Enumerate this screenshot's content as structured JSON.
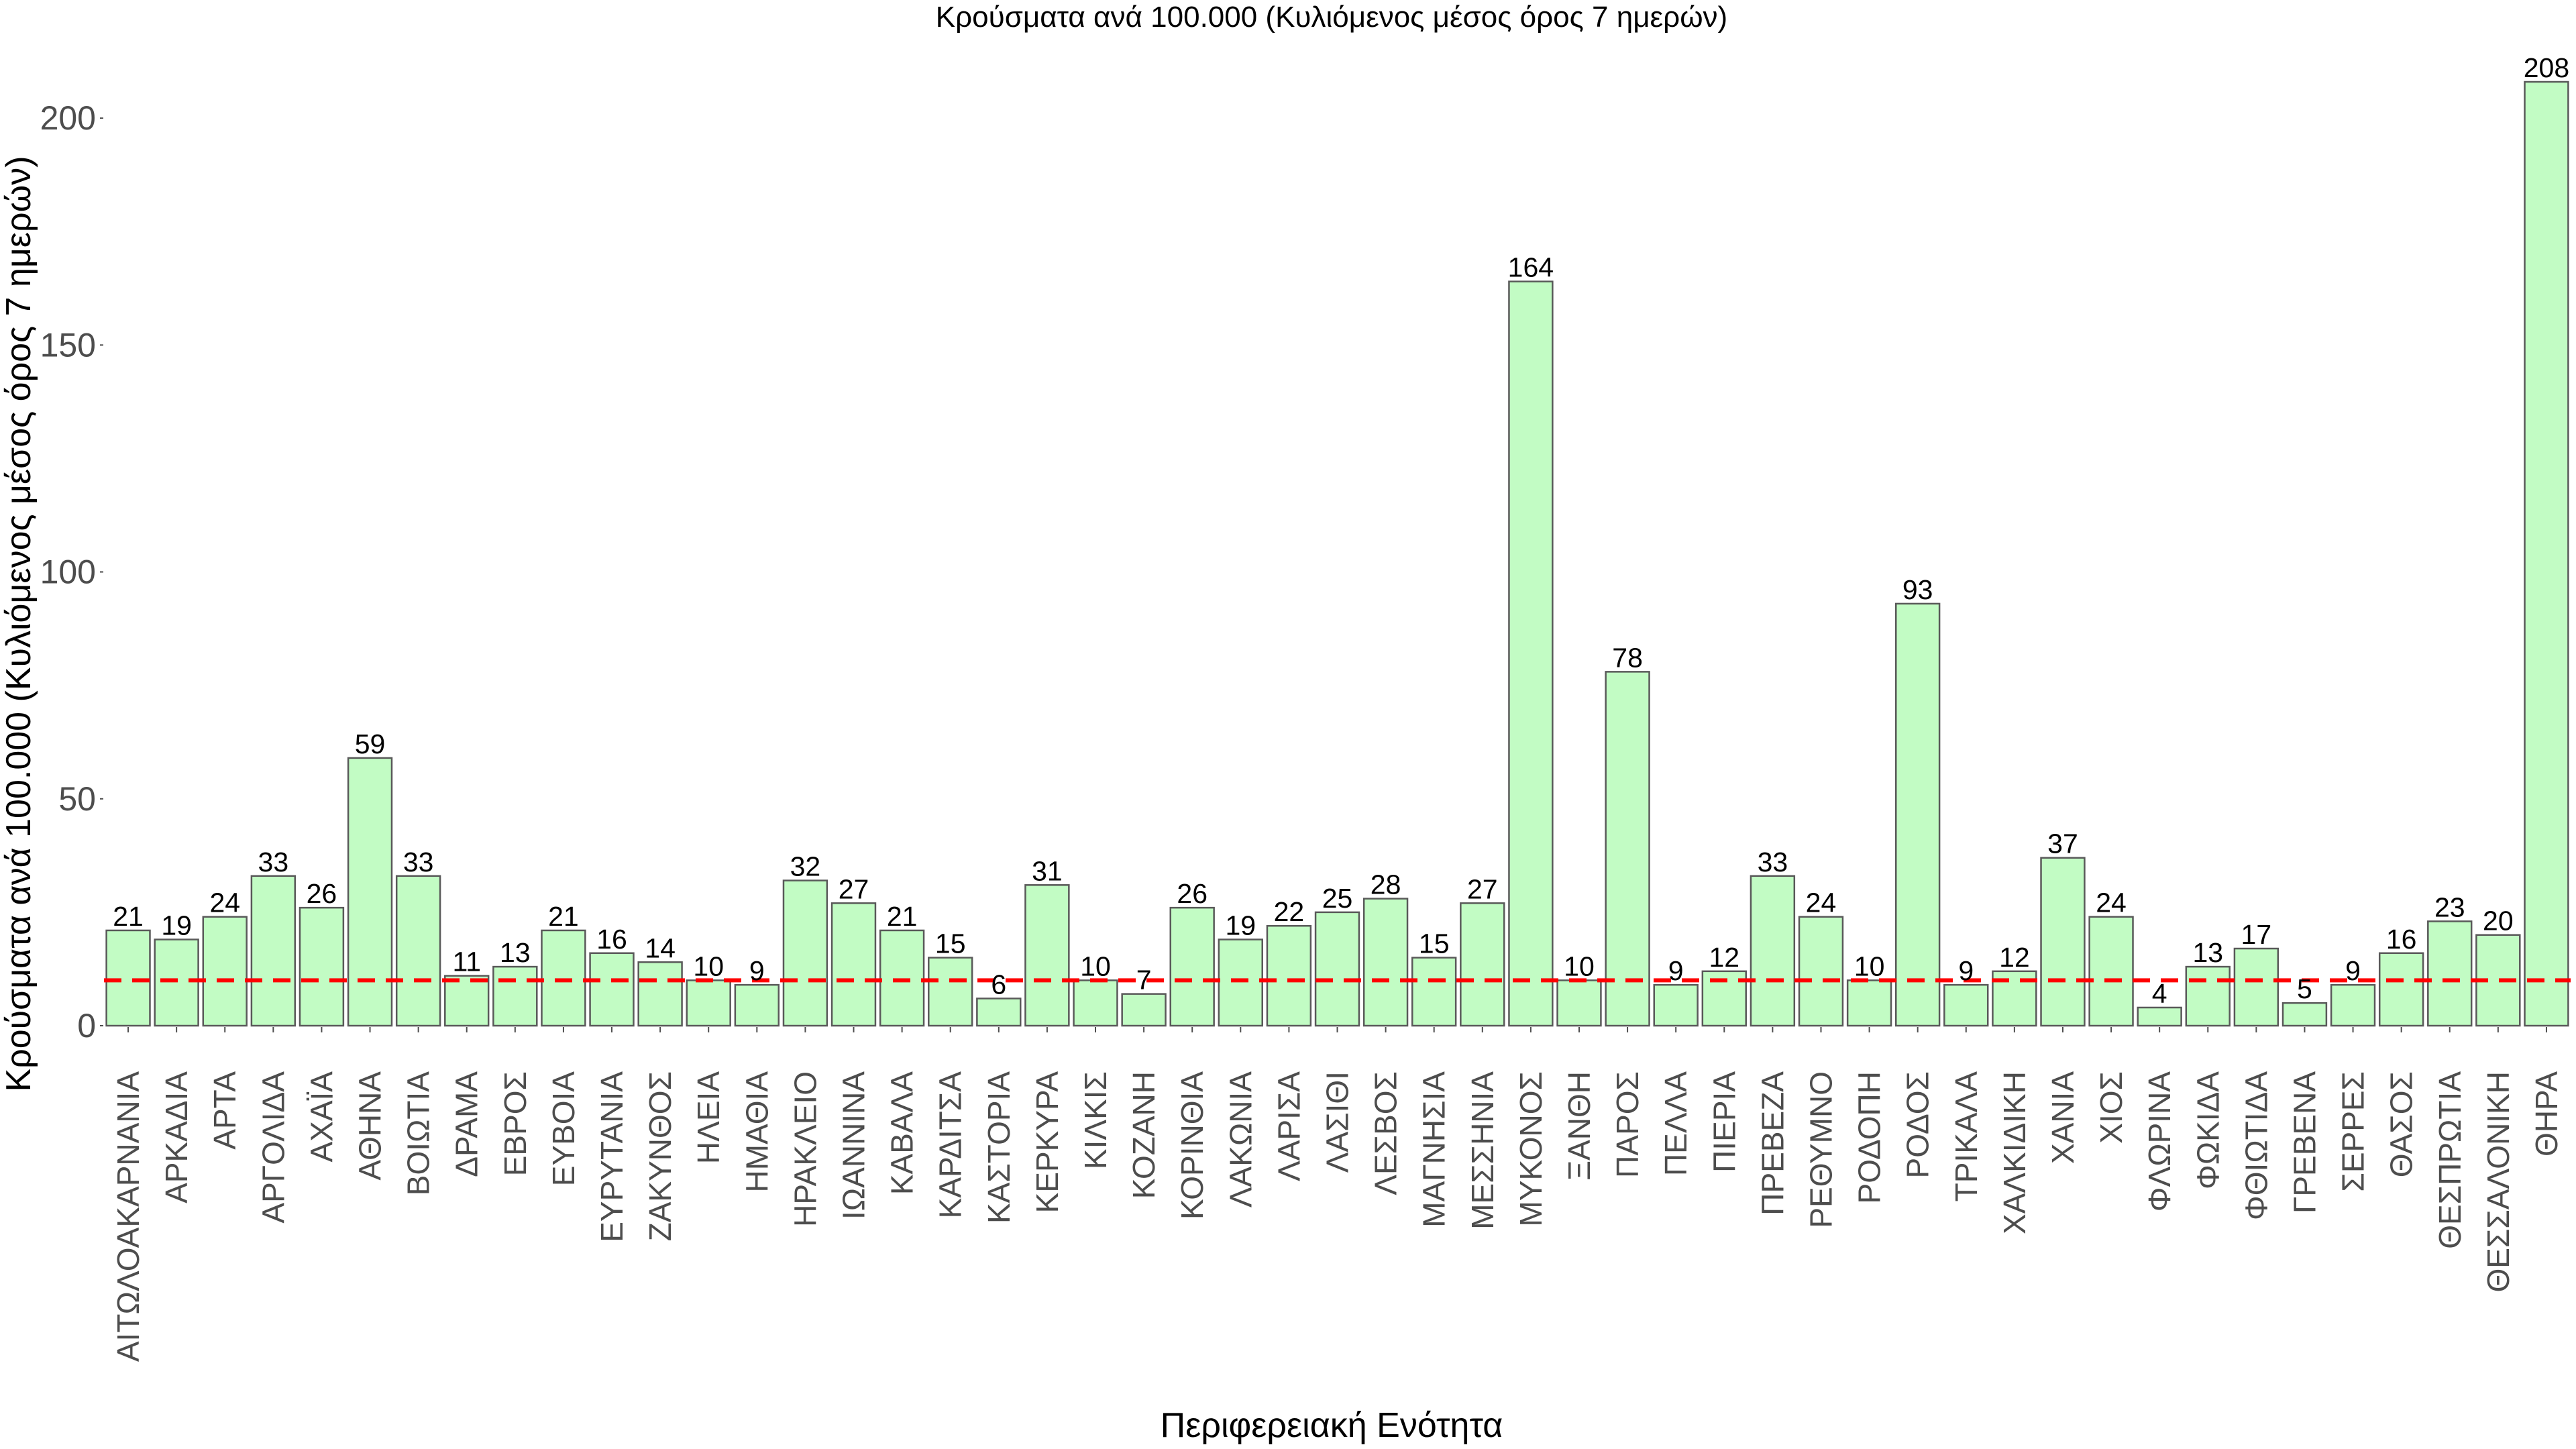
{
  "chart_data": {
    "type": "bar",
    "title": "Κρούσματα ανά 100.000 (Κυλιόμενος μέσος όρος 7 ημερών)",
    "xlabel": "Περιφερειακή Ενότητα",
    "ylabel": "Κρούσματα ανά 100.000 (Κυλιόμενος μέσος όρος 7 ημερών)",
    "ylim": [
      0,
      208
    ],
    "yticks": [
      0,
      50,
      100,
      150,
      200
    ],
    "grid": false,
    "reference_line": 10,
    "categories": [
      "ΑΙΤΩΛΟΑΚΑΡΝΑΝΙΑ",
      "ΑΡΚΑΔΙΑ",
      "ΑΡΤΑ",
      "ΑΡΓΟΛΙΔΑ",
      "ΑΧΑΪΑ",
      "ΑΘΗΝΑ",
      "ΒΟΙΩΤΙΑ",
      "ΔΡΑΜΑ",
      "ΕΒΡΟΣ",
      "ΕΥΒΟΙΑ",
      "ΕΥΡΥΤΑΝΙΑ",
      "ΖΑΚΥΝΘΟΣ",
      "ΗΛΕΙΑ",
      "ΗΜΑΘΙΑ",
      "ΗΡΑΚΛΕΙΟ",
      "ΙΩΑΝΝΙΝΑ",
      "ΚΑΒΑΛΑ",
      "ΚΑΡΔΙΤΣΑ",
      "ΚΑΣΤΟΡΙΑ",
      "ΚΕΡΚΥΡΑ",
      "ΚΙΛΚΙΣ",
      "ΚΟΖΑΝΗ",
      "ΚΟΡΙΝΘΙΑ",
      "ΛΑΚΩΝΙΑ",
      "ΛΑΡΙΣΑ",
      "ΛΑΣΙΘΙ",
      "ΛΕΣΒΟΣ",
      "ΜΑΓΝΗΣΙΑ",
      "ΜΕΣΣΗΝΙΑ",
      "ΜΥΚΟΝΟΣ",
      "ΞΑΝΘΗ",
      "ΠΑΡΟΣ",
      "ΠΕΛΛΑ",
      "ΠΙΕΡΙΑ",
      "ΠΡΕΒΕΖΑ",
      "ΡΕΘΥΜΝΟ",
      "ΡΟΔΟΠΗ",
      "ΡΟΔΟΣ",
      "ΤΡΙΚΑΛΑ",
      "ΧΑΛΚΙΔΙΚΗ",
      "ΧΑΝΙΑ",
      "ΧΙΟΣ",
      "ΦΛΩΡΙΝΑ",
      "ΦΩΚΙΔΑ",
      "ΦΘΙΩΤΙΔΑ",
      "ΓΡΕΒΕΝΑ",
      "ΣΕΡΡΕΣ",
      "ΘΑΣΟΣ",
      "ΘΕΣΠΡΩΤΙΑ",
      "ΘΕΣΣΑΛΟΝΙΚΗ",
      "ΘΗΡΑ"
    ],
    "values": [
      21,
      19,
      24,
      33,
      26,
      59,
      33,
      11,
      13,
      21,
      16,
      14,
      10,
      9,
      32,
      27,
      21,
      15,
      6,
      31,
      10,
      7,
      26,
      19,
      22,
      25,
      28,
      15,
      27,
      164,
      10,
      78,
      9,
      12,
      33,
      24,
      10,
      93,
      9,
      12,
      37,
      24,
      4,
      13,
      17,
      5,
      9,
      16,
      23,
      20,
      208
    ],
    "colors": {
      "bar_fill": "#c2fcc4",
      "bar_stroke": "#595959",
      "reference_line": "#ff0000"
    }
  }
}
